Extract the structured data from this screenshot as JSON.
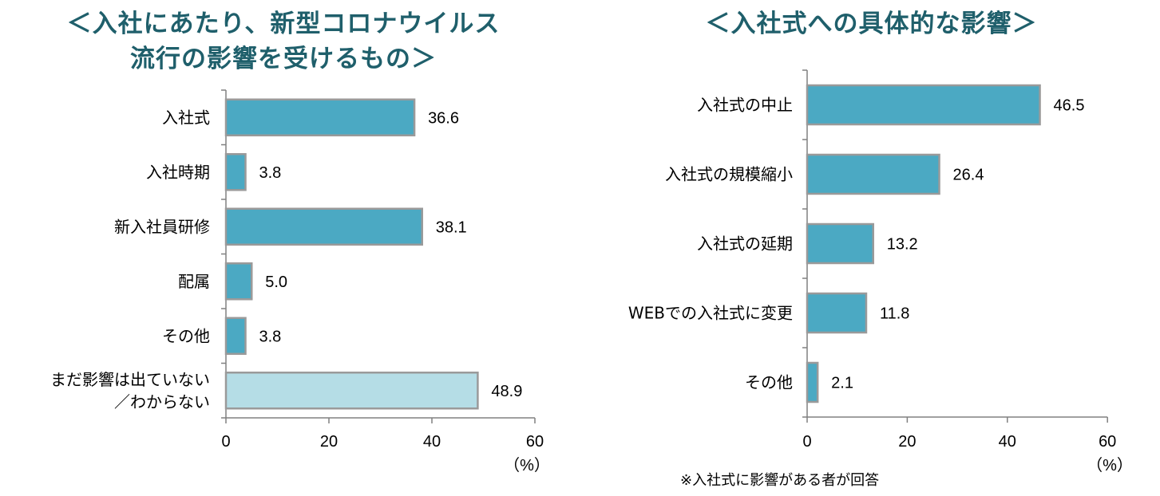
{
  "chart_data": [
    {
      "type": "bar",
      "orientation": "horizontal",
      "title": [
        "＜入社にあたり、新型コロナウイルス",
        "流行の影響を受けるもの＞"
      ],
      "categories": [
        "入社式",
        "入社時期",
        "新入社員研修",
        "配属",
        "その他",
        "まだ影響は出ていない\n／わからない"
      ],
      "values": [
        36.6,
        3.8,
        38.1,
        5.0,
        3.8,
        48.9
      ],
      "value_labels": [
        "36.6",
        "3.8",
        "38.1",
        "5.0",
        "3.8",
        "48.9"
      ],
      "bar_colors": [
        "#4ba9c3",
        "#4ba9c3",
        "#4ba9c3",
        "#4ba9c3",
        "#4ba9c3",
        "#b5dde6"
      ],
      "xlim": [
        0,
        60
      ],
      "xticks": [
        0,
        20,
        40,
        60
      ],
      "unit": "（%）",
      "grid": false
    },
    {
      "type": "bar",
      "orientation": "horizontal",
      "title": [
        "＜入社式への具体的な影響＞"
      ],
      "categories": [
        "入社式の中止",
        "入社式の規模縮小",
        "入社式の延期",
        "WEBでの入社式に変更",
        "その他"
      ],
      "values": [
        46.5,
        26.4,
        13.2,
        11.8,
        2.1
      ],
      "value_labels": [
        "46.5",
        "26.4",
        "13.2",
        "11.8",
        "2.1"
      ],
      "bar_colors": [
        "#4ba9c3",
        "#4ba9c3",
        "#4ba9c3",
        "#4ba9c3",
        "#4ba9c3"
      ],
      "xlim": [
        0,
        60
      ],
      "xticks": [
        0,
        20,
        40,
        60
      ],
      "unit": "（%）",
      "grid": false
    }
  ],
  "footnote": "※入社式に影響がある者が回答",
  "colors": {
    "title": "#1f5f6b",
    "bar": "#4ba9c3",
    "bar_light": "#b5dde6",
    "bar_border": "#9a9a9a",
    "axis": "#808080"
  }
}
